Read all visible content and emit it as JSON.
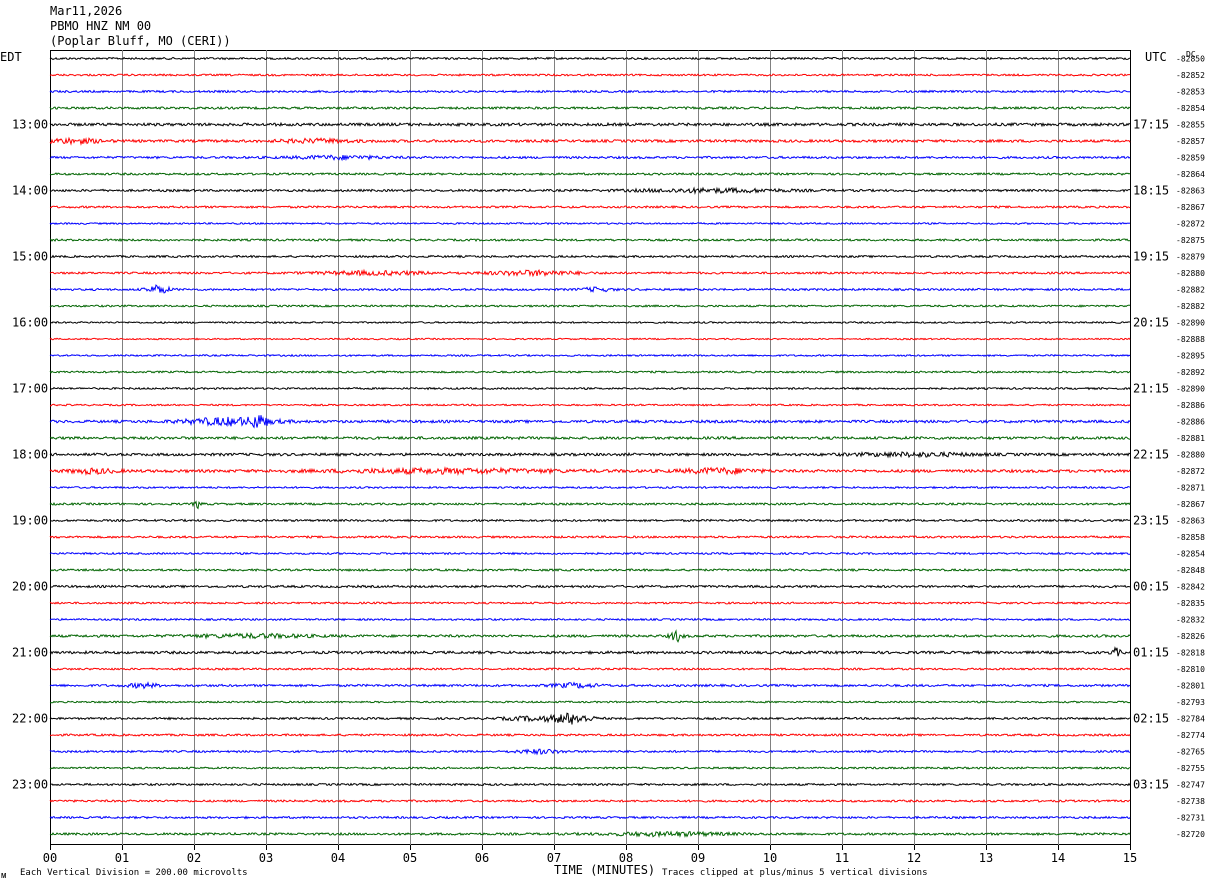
{
  "header": {
    "date": "Mar11,2026",
    "station": "PBMO HNZ NM 00",
    "location": "(Poplar Bluff, MO (CERI))"
  },
  "left_axis_label": "EDT",
  "right_axis_label": "UTC",
  "dc_label": "DC",
  "footer": {
    "scale_note": "Each Vertical Division =  200.00 microvolts",
    "xlabel": "TIME (MINUTES)",
    "clip_note": "Traces clipped at plus/minus 5 vertical divisions",
    "corner_mark": "ᴍ"
  },
  "chart_data": {
    "type": "line",
    "title": "PBMO HNZ NM 00",
    "xlabel": "TIME (MINUTES)",
    "xlim": [
      0,
      15
    ],
    "x_ticks": [
      "00",
      "01",
      "02",
      "03",
      "04",
      "05",
      "06",
      "07",
      "08",
      "09",
      "10",
      "11",
      "12",
      "13",
      "14",
      "15"
    ],
    "trace_colors": [
      "#000000",
      "#ff0000",
      "#0000ff",
      "#006400"
    ],
    "trace_minutes": 15,
    "grid": "vertical lines each minute",
    "left_hour_labels": [
      {
        "trace": 4,
        "text": "13:00"
      },
      {
        "trace": 8,
        "text": "14:00"
      },
      {
        "trace": 12,
        "text": "15:00"
      },
      {
        "trace": 16,
        "text": "16:00"
      },
      {
        "trace": 20,
        "text": "17:00"
      },
      {
        "trace": 24,
        "text": "18:00"
      },
      {
        "trace": 28,
        "text": "19:00"
      },
      {
        "trace": 32,
        "text": "20:00"
      },
      {
        "trace": 36,
        "text": "21:00"
      },
      {
        "trace": 40,
        "text": "22:00"
      },
      {
        "trace": 44,
        "text": "23:00"
      }
    ],
    "right_hour_labels": [
      {
        "trace": 4,
        "text": "17:15"
      },
      {
        "trace": 8,
        "text": "18:15"
      },
      {
        "trace": 12,
        "text": "19:15"
      },
      {
        "trace": 16,
        "text": "20:15"
      },
      {
        "trace": 20,
        "text": "21:15"
      },
      {
        "trace": 24,
        "text": "22:15"
      },
      {
        "trace": 28,
        "text": "23:15"
      },
      {
        "trace": 32,
        "text": "00:15"
      },
      {
        "trace": 36,
        "text": "01:15"
      },
      {
        "trace": 40,
        "text": "02:15"
      },
      {
        "trace": 44,
        "text": "03:15"
      }
    ],
    "dc_offsets": [
      "-82850",
      "-82852",
      "-82853",
      "-82854",
      "-82855",
      "-82857",
      "-82859",
      "-82864",
      "-82863",
      "-82867",
      "-82872",
      "-82875",
      "-82879",
      "-82880",
      "-82882",
      "-82882",
      "-82890",
      "-82888",
      "-82895",
      "-82892",
      "-82890",
      "-82886",
      "-82886",
      "-82881",
      "-82880",
      "-82872",
      "-82871",
      "-82867",
      "-82863",
      "-82858",
      "-82854",
      "-82848",
      "-82842",
      "-82835",
      "-82832",
      "-82826",
      "-82818",
      "-82810",
      "-82801",
      "-82793",
      "-82784",
      "-82774",
      "-82765",
      "-82755",
      "-82747",
      "-82738",
      "-82731",
      "-82720"
    ],
    "traces": [
      {
        "amplitude": 1.0
      },
      {
        "amplitude": 0.9
      },
      {
        "amplitude": 1.0
      },
      {
        "amplitude": 1.1
      },
      {
        "amplitude": 1.4
      },
      {
        "amplitude": 1.3,
        "bursts": [
          {
            "minute": 0.3,
            "width": 0.4,
            "amp": 2.0
          },
          {
            "minute": 3.7,
            "width": 0.5,
            "amp": 1.5
          }
        ]
      },
      {
        "amplitude": 1.1,
        "bursts": [
          {
            "minute": 4.0,
            "width": 0.6,
            "amp": 1.5
          }
        ]
      },
      {
        "amplitude": 1.0
      },
      {
        "amplitude": 1.1,
        "bursts": [
          {
            "minute": 9.2,
            "width": 1.0,
            "amp": 1.6
          }
        ]
      },
      {
        "amplitude": 1.0
      },
      {
        "amplitude": 0.8
      },
      {
        "amplitude": 1.0
      },
      {
        "amplitude": 1.0
      },
      {
        "amplitude": 1.0,
        "bursts": [
          {
            "minute": 4.5,
            "width": 0.8,
            "amp": 1.6
          },
          {
            "minute": 6.7,
            "width": 0.6,
            "amp": 2.2
          }
        ]
      },
      {
        "amplitude": 1.0,
        "bursts": [
          {
            "minute": 1.5,
            "width": 0.15,
            "amp": 4.0
          },
          {
            "minute": 7.6,
            "width": 0.2,
            "amp": 1.8
          }
        ]
      },
      {
        "amplitude": 0.9
      },
      {
        "amplitude": 0.8
      },
      {
        "amplitude": 0.7
      },
      {
        "amplitude": 0.8
      },
      {
        "amplitude": 0.9
      },
      {
        "amplitude": 0.9
      },
      {
        "amplitude": 0.8
      },
      {
        "amplitude": 1.3,
        "bursts": [
          {
            "minute": 2.5,
            "width": 0.6,
            "amp": 3.5
          },
          {
            "minute": 2.9,
            "width": 0.1,
            "amp": 5.0
          }
        ]
      },
      {
        "amplitude": 1.3
      },
      {
        "amplitude": 1.3,
        "bursts": [
          {
            "minute": 12.0,
            "width": 0.8,
            "amp": 1.5
          }
        ]
      },
      {
        "amplitude": 1.4,
        "bursts": [
          {
            "minute": 0.6,
            "width": 0.3,
            "amp": 2.0
          },
          {
            "minute": 5.5,
            "width": 1.5,
            "amp": 1.8
          },
          {
            "minute": 9.3,
            "width": 0.5,
            "amp": 2.2
          }
        ]
      },
      {
        "amplitude": 0.9
      },
      {
        "amplitude": 1.0,
        "bursts": [
          {
            "minute": 2.05,
            "width": 0.05,
            "amp": 4.0
          }
        ]
      },
      {
        "amplitude": 1.0
      },
      {
        "amplitude": 1.0
      },
      {
        "amplitude": 0.9
      },
      {
        "amplitude": 1.0
      },
      {
        "amplitude": 1.1
      },
      {
        "amplitude": 0.9
      },
      {
        "amplitude": 0.9
      },
      {
        "amplitude": 1.2,
        "bursts": [
          {
            "minute": 2.8,
            "width": 0.8,
            "amp": 1.5
          },
          {
            "minute": 8.7,
            "width": 0.08,
            "amp": 5.0
          }
        ]
      },
      {
        "amplitude": 1.3,
        "bursts": [
          {
            "minute": 14.8,
            "width": 0.06,
            "amp": 4.0
          }
        ]
      },
      {
        "amplitude": 0.9
      },
      {
        "amplitude": 1.1,
        "bursts": [
          {
            "minute": 1.3,
            "width": 0.2,
            "amp": 2.0
          },
          {
            "minute": 7.3,
            "width": 0.3,
            "amp": 2.0
          }
        ]
      },
      {
        "amplitude": 0.8
      },
      {
        "amplitude": 1.0,
        "bursts": [
          {
            "minute": 6.7,
            "width": 0.4,
            "amp": 1.8
          },
          {
            "minute": 7.25,
            "width": 0.25,
            "amp": 5.0
          }
        ]
      },
      {
        "amplitude": 1.0
      },
      {
        "amplitude": 1.0,
        "bursts": [
          {
            "minute": 6.8,
            "width": 0.3,
            "amp": 1.8
          }
        ]
      },
      {
        "amplitude": 0.9
      },
      {
        "amplitude": 1.0
      },
      {
        "amplitude": 1.0
      },
      {
        "amplitude": 1.0
      },
      {
        "amplitude": 1.1,
        "bursts": [
          {
            "minute": 8.6,
            "width": 0.8,
            "amp": 1.6
          }
        ]
      }
    ]
  }
}
